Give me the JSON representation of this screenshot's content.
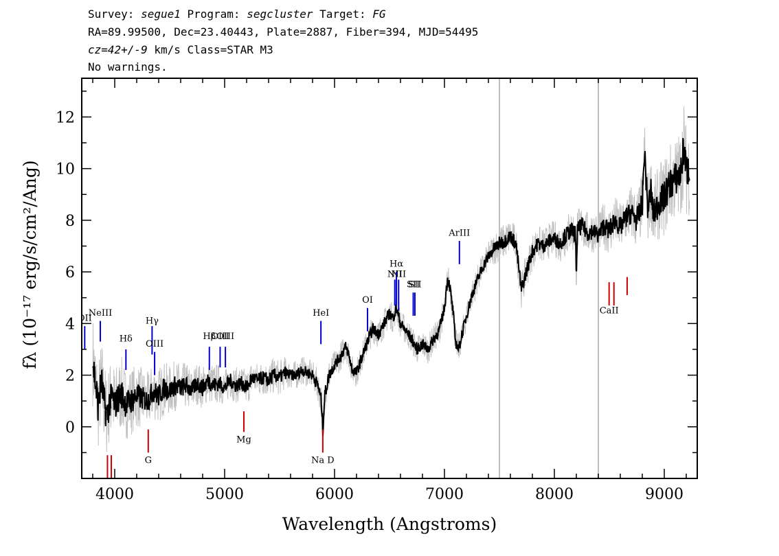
{
  "header": {
    "line1": {
      "survey_label": "Survey: ",
      "survey": "segue1",
      "program_label": " Program: ",
      "program": "segcluster",
      "target_label": " Target: ",
      "target": "FG"
    },
    "line2": "RA=89.99500, Dec=23.40443, Plate=2887, Fiber=394, MJD=54495",
    "line3": {
      "cz": "cz=42+/-9",
      "rest": " km/s Class=STAR M3"
    },
    "line4": "No warnings."
  },
  "chart_data": {
    "type": "line",
    "xlabel": "Wavelength (Angstroms)",
    "ylabel": "fλ (10⁻¹⁷ erg/s/cm²/Ang)",
    "xlim": [
      3700,
      9300
    ],
    "ylim": [
      -2,
      13.5
    ],
    "x_ticks": [
      4000,
      5000,
      6000,
      7000,
      8000,
      9000
    ],
    "y_ticks": [
      0,
      2,
      4,
      6,
      8,
      10,
      12
    ],
    "grid": false,
    "series": [
      {
        "role": "flux",
        "color": "#000000",
        "x": [
          3800,
          3830,
          3850,
          3880,
          3900,
          3930,
          3950,
          3980,
          4000,
          4030,
          4060,
          4100,
          4150,
          4200,
          4250,
          4300,
          4350,
          4400,
          4450,
          4500,
          4550,
          4600,
          4650,
          4700,
          4750,
          4800,
          4850,
          4900,
          4950,
          5000,
          5050,
          5100,
          5150,
          5200,
          5250,
          5300,
          5350,
          5400,
          5450,
          5500,
          5550,
          5600,
          5650,
          5700,
          5750,
          5800,
          5850,
          5880,
          5893,
          5910,
          5950,
          6000,
          6050,
          6100,
          6130,
          6160,
          6200,
          6250,
          6300,
          6350,
          6400,
          6450,
          6500,
          6530,
          6563,
          6600,
          6650,
          6700,
          6750,
          6800,
          6850,
          6900,
          6950,
          7000,
          7030,
          7050,
          7080,
          7100,
          7130,
          7150,
          7200,
          7250,
          7300,
          7350,
          7400,
          7450,
          7500,
          7550,
          7600,
          7650,
          7700,
          7750,
          7800,
          7850,
          7900,
          7950,
          8000,
          8050,
          8100,
          8150,
          8190,
          8200,
          8210,
          8250,
          8300,
          8350,
          8400,
          8450,
          8500,
          8550,
          8600,
          8650,
          8700,
          8750,
          8800,
          8820,
          8850,
          8880,
          8900,
          8950,
          9000,
          9050,
          9100,
          9150,
          9180,
          9200,
          9230
        ],
        "y": [
          2.6,
          1.5,
          0.8,
          1.8,
          1.0,
          0.4,
          0.9,
          1.2,
          0.8,
          1.1,
          1.3,
          0.9,
          1.0,
          1.2,
          1.1,
          1.0,
          1.4,
          1.2,
          1.5,
          1.4,
          1.6,
          1.5,
          1.6,
          1.4,
          1.7,
          1.5,
          1.8,
          1.6,
          1.7,
          1.5,
          1.8,
          1.6,
          1.7,
          1.5,
          1.9,
          1.8,
          1.9,
          1.8,
          2.0,
          1.9,
          2.1,
          2.0,
          2.0,
          2.2,
          2.1,
          2.0,
          1.6,
          1.0,
          -0.2,
          1.2,
          2.0,
          2.4,
          2.7,
          3.1,
          2.8,
          2.2,
          2.1,
          2.7,
          3.3,
          3.8,
          3.6,
          4.0,
          4.4,
          4.2,
          4.6,
          4.0,
          3.7,
          3.4,
          3.0,
          3.2,
          3.0,
          3.4,
          3.7,
          4.6,
          5.8,
          5.4,
          4.4,
          3.3,
          3.0,
          3.4,
          4.3,
          5.1,
          5.7,
          6.2,
          6.6,
          6.9,
          7.1,
          7.2,
          7.4,
          7.1,
          5.3,
          6.1,
          6.8,
          7.1,
          7.0,
          7.2,
          7.3,
          7.1,
          7.4,
          7.6,
          7.5,
          6.0,
          7.6,
          7.8,
          7.5,
          7.6,
          7.4,
          7.8,
          7.6,
          8.0,
          7.7,
          8.1,
          8.3,
          8.0,
          8.6,
          10.7,
          8.4,
          9.2,
          8.2,
          8.7,
          8.9,
          9.4,
          9.6,
          9.8,
          10.9,
          9.9,
          10.0
        ]
      },
      {
        "role": "error-band",
        "color": "#c0c0c0",
        "x": [
          3800,
          3900,
          4000,
          4100,
          4200,
          4300,
          4400,
          4500,
          4600,
          4700,
          4800,
          4900,
          5000,
          5100,
          5200,
          5300,
          5400,
          5500,
          5600,
          5700,
          5800,
          5900,
          6000,
          6100,
          6200,
          6300,
          6400,
          6500,
          6600,
          6700,
          6800,
          6900,
          7000,
          7100,
          7200,
          7300,
          7400,
          7500,
          7600,
          7700,
          7800,
          7900,
          8000,
          8100,
          8200,
          8300,
          8400,
          8500,
          8600,
          8700,
          8800,
          8900,
          9000,
          9100,
          9230
        ],
        "err": [
          1.3,
          1.2,
          1.1,
          1.0,
          0.9,
          0.8,
          0.8,
          0.7,
          0.7,
          0.6,
          0.6,
          0.6,
          0.5,
          0.5,
          0.5,
          0.5,
          0.5,
          0.5,
          0.4,
          0.4,
          0.4,
          0.5,
          0.4,
          0.4,
          0.4,
          0.4,
          0.4,
          0.4,
          0.4,
          0.4,
          0.4,
          0.4,
          0.4,
          0.4,
          0.4,
          0.4,
          0.4,
          0.5,
          0.5,
          0.5,
          0.5,
          0.5,
          0.5,
          0.6,
          0.6,
          0.6,
          0.6,
          0.7,
          0.7,
          0.8,
          0.9,
          1.0,
          1.1,
          1.2,
          1.3
        ]
      }
    ],
    "sky_lines": {
      "color": "#bebebe",
      "x": [
        7500,
        8400
      ]
    },
    "emission_lines": {
      "color": "#0000cc",
      "items": [
        {
          "label": "OII",
          "x": 3727,
          "y0": 3.0,
          "y1": 3.9,
          "ly": 4.1
        },
        {
          "label": "NeIII",
          "x": 3869,
          "y0": 3.3,
          "y1": 4.1,
          "ly": 4.3
        },
        {
          "label": "Hδ",
          "x": 4102,
          "y0": 2.2,
          "y1": 3.0,
          "ly": 3.3
        },
        {
          "label": "Hγ",
          "x": 4340,
          "y0": 2.8,
          "y1": 3.9,
          "ly": 4.0
        },
        {
          "label": "OIII",
          "x": 4363,
          "y0": 2.0,
          "y1": 2.9,
          "ly": 3.1
        },
        {
          "label": "Hβ",
          "x": 4861,
          "y0": 2.2,
          "y1": 3.1,
          "ly": 3.4
        },
        {
          "label": "OIII",
          "x": 4959,
          "y0": 2.3,
          "y1": 3.1,
          "ly": 3.4
        },
        {
          "label": "OIII",
          "x": 5007,
          "y0": 2.3,
          "y1": 3.1,
          "ly": 3.4
        },
        {
          "label": "HeI",
          "x": 5876,
          "y0": 3.2,
          "y1": 4.1,
          "ly": 4.3
        },
        {
          "label": "OI",
          "x": 6300,
          "y0": 3.7,
          "y1": 4.6,
          "ly": 4.8
        },
        {
          "label": "NII",
          "x": 6548,
          "y0": 4.7,
          "y1": 5.7,
          "ly": 5.8
        },
        {
          "label": "Hα",
          "x": 6563,
          "y0": 4.7,
          "y1": 6.0,
          "ly": 6.2
        },
        {
          "label": "NII",
          "x": 6583,
          "y0": 4.5,
          "y1": 5.7,
          "ly": 5.8
        },
        {
          "label": "SII",
          "x": 6716,
          "y0": 4.3,
          "y1": 5.2,
          "ly": 5.4
        },
        {
          "label": "SII",
          "x": 6731,
          "y0": 4.3,
          "y1": 5.2,
          "ly": 5.4
        },
        {
          "label": "ArIII",
          "x": 7136,
          "y0": 6.3,
          "y1": 7.2,
          "ly": 7.4
        }
      ]
    },
    "absorption_lines": {
      "color": "#cc0000",
      "items": [
        {
          "label": "",
          "x": 3934,
          "y0": -2.0,
          "y1": -1.1,
          "ly": null
        },
        {
          "label": "",
          "x": 3969,
          "y0": -2.0,
          "y1": -1.1,
          "ly": null
        },
        {
          "label": "G",
          "x": 4305,
          "y0": -1.0,
          "y1": -0.1,
          "ly": -1.4
        },
        {
          "label": "Mg",
          "x": 5175,
          "y0": -0.2,
          "y1": 0.6,
          "ly": -0.6
        },
        {
          "label": "Na D",
          "x": 5893,
          "y0": -1.0,
          "y1": -0.1,
          "ly": -1.4
        },
        {
          "label": "CaII",
          "x": 8498,
          "y0": 4.7,
          "y1": 5.6,
          "ly": 4.4
        },
        {
          "label": "",
          "x": 8542,
          "y0": 4.7,
          "y1": 5.6,
          "ly": null
        },
        {
          "label": "",
          "x": 8662,
          "y0": 5.1,
          "y1": 5.8,
          "ly": null
        }
      ]
    }
  }
}
